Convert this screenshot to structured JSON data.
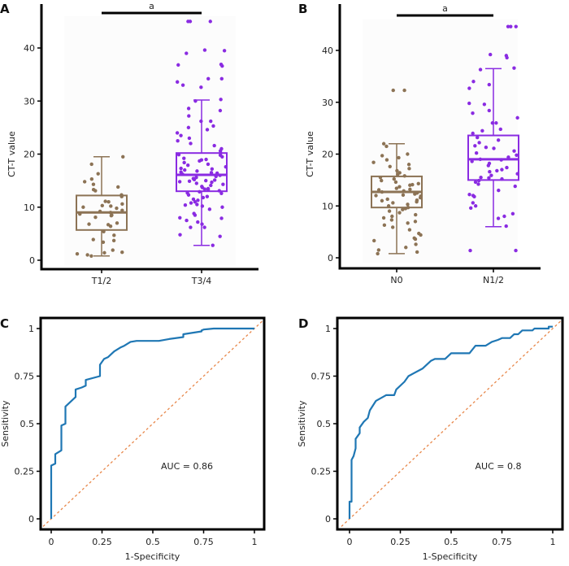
{
  "chart_data": [
    {
      "panel": "A",
      "type": "box",
      "ylabel": "CT-T value",
      "ylim": [
        0,
        45
      ],
      "yticks": [
        0,
        10,
        20,
        30,
        40
      ],
      "categories": [
        "T1/2",
        "T3/4"
      ],
      "significance": {
        "label": "a",
        "from": "T1/2",
        "to": "T3/4"
      },
      "groups": [
        {
          "name": "T1/2",
          "color": "#8c7355",
          "box": {
            "whisker_low": 0.8,
            "q1": 5.7,
            "median": 9.0,
            "q3": 12.2,
            "whisker_high": 19.5
          },
          "points": [
            1.2,
            1.5,
            0.8,
            1.0,
            1.9,
            3.4,
            3.9,
            3.7,
            4.7,
            5.4,
            6.4,
            6.7,
            7.0,
            6.8,
            8.1,
            8.5,
            8.4,
            8.7,
            9.0,
            9.2,
            9.4,
            9.8,
            10.0,
            10.3,
            10.6,
            10.2,
            11.0,
            11.1,
            12.0,
            12.3,
            13.1,
            13.3,
            13.8,
            14.3,
            14.8,
            15.3,
            16.3,
            18.1,
            19.5,
            1.4
          ]
        },
        {
          "name": "T3/4",
          "color": "#8a2be2",
          "box": {
            "whisker_low": 2.8,
            "q1": 13.0,
            "median": 16.1,
            "q3": 20.2,
            "whisker_high": 30.2
          },
          "points": [
            2.8,
            4.5,
            4.8,
            6.2,
            6.2,
            6.8,
            7.2,
            7.5,
            7.9,
            8.0,
            8.5,
            8.8,
            9.6,
            10.0,
            10.2,
            10.4,
            10.5,
            10.8,
            11.0,
            11.3,
            11.5,
            11.8,
            12.0,
            12.3,
            12.6,
            12.9,
            13.1,
            13.3,
            13.5,
            13.7,
            13.9,
            14.1,
            14.3,
            14.5,
            14.7,
            14.9,
            15.0,
            15.2,
            15.4,
            15.6,
            15.8,
            16.0,
            16.2,
            16.4,
            16.6,
            16.8,
            17.0,
            17.3,
            17.6,
            17.9,
            18.1,
            18.4,
            18.7,
            19.0,
            19.2,
            19.5,
            19.8,
            20.2,
            20.6,
            21.0,
            21.6,
            22.0,
            22.5,
            23.0,
            23.5,
            24.0,
            24.6,
            25.0,
            25.3,
            26.2,
            26.2,
            27.2,
            28.2,
            28.6,
            30.0,
            30.3,
            33.0,
            32.6,
            33.6,
            34.2,
            34.2,
            36.6,
            36.8,
            36.9,
            39.0,
            39.5,
            39.6,
            45.0,
            45.0,
            45.0,
            12.7,
            13.4,
            14.8,
            15.1,
            16.5,
            17.2,
            18.9,
            19.9
          ]
        }
      ]
    },
    {
      "panel": "B",
      "type": "box",
      "ylabel": "CT-T value",
      "ylim": [
        0,
        45
      ],
      "yticks": [
        0,
        10,
        20,
        30,
        40
      ],
      "categories": [
        "N0",
        "N1/2"
      ],
      "significance": {
        "label": "a",
        "from": "N0",
        "to": "N1/2"
      },
      "groups": [
        {
          "name": "N0",
          "color": "#8c7355",
          "box": {
            "whisker_low": 0.8,
            "q1": 9.7,
            "median": 12.7,
            "q3": 15.7,
            "whisker_high": 22.0
          },
          "points": [
            0.8,
            1.1,
            1.5,
            2.0,
            2.6,
            3.3,
            3.6,
            3.8,
            4.4,
            4.7,
            5.4,
            5.9,
            6.3,
            6.7,
            7.0,
            7.3,
            7.7,
            8.0,
            8.3,
            8.7,
            9.0,
            9.3,
            9.7,
            10.0,
            10.3,
            10.6,
            11.0,
            11.3,
            11.6,
            11.9,
            12.1,
            12.3,
            12.5,
            12.7,
            12.9,
            13.1,
            13.4,
            13.7,
            14.0,
            14.3,
            14.6,
            14.9,
            15.2,
            15.5,
            15.8,
            16.1,
            16.4,
            16.8,
            17.2,
            17.6,
            18.0,
            18.4,
            18.9,
            19.3,
            19.7,
            20.0,
            21.5,
            22.0,
            32.3,
            32.3,
            12.0,
            13.2,
            14.1,
            11.1,
            10.8,
            9.5
          ]
        },
        {
          "name": "N1/2",
          "color": "#8a2be2",
          "box": {
            "whisker_low": 6.0,
            "q1": 15.0,
            "median": 19.0,
            "q3": 23.6,
            "whisker_high": 36.5
          },
          "points": [
            1.4,
            1.4,
            6.1,
            7.6,
            8.0,
            8.5,
            9.6,
            10.0,
            10.6,
            11.8,
            12.0,
            12.2,
            13.0,
            13.8,
            14.2,
            14.6,
            14.9,
            15.2,
            15.5,
            15.9,
            16.2,
            16.6,
            17.0,
            17.4,
            17.8,
            18.2,
            18.6,
            19.0,
            19.4,
            19.8,
            20.2,
            20.6,
            21.1,
            21.6,
            22.2,
            22.7,
            23.2,
            24.0,
            24.5,
            24.8,
            26.0,
            26.0,
            27.0,
            27.9,
            28.4,
            29.6,
            29.8,
            32.7,
            33.4,
            34.0,
            36.3,
            36.6,
            38.6,
            39.0,
            39.2,
            44.6,
            44.6,
            44.6,
            18.9,
            16.8,
            21.3,
            15.4
          ]
        }
      ]
    },
    {
      "panel": "C",
      "type": "line",
      "xlabel": "1-Specificity",
      "ylabel": "Sensitivity",
      "xlim": [
        0,
        1
      ],
      "ylim": [
        0,
        1
      ],
      "xticks": [
        "0",
        "0.25",
        "0.5",
        "0.75",
        "1"
      ],
      "yticks": [
        "0",
        "0.25",
        "0.5",
        "0.75",
        "1"
      ],
      "annotation": "AUC = 0.86",
      "series": [
        {
          "name": "ROC",
          "color": "#1f77b4",
          "x": [
            0,
            0,
            0.02,
            0.02,
            0.05,
            0.05,
            0.07,
            0.07,
            0.12,
            0.12,
            0.15,
            0.17,
            0.17,
            0.24,
            0.24,
            0.26,
            0.28,
            0.31,
            0.34,
            0.36,
            0.39,
            0.42,
            0.53,
            0.58,
            0.65,
            0.65,
            0.74,
            0.74,
            0.75,
            0.8,
            0.87,
            1.0
          ],
          "y": [
            0,
            0.28,
            0.29,
            0.34,
            0.36,
            0.49,
            0.5,
            0.59,
            0.64,
            0.68,
            0.69,
            0.7,
            0.73,
            0.75,
            0.81,
            0.84,
            0.85,
            0.88,
            0.9,
            0.91,
            0.93,
            0.935,
            0.935,
            0.945,
            0.955,
            0.97,
            0.985,
            0.99,
            0.995,
            1.0,
            1.0,
            1.0
          ]
        },
        {
          "name": "reference",
          "color": "#e8874a",
          "dashed": true,
          "x": [
            -0.04,
            1.04
          ],
          "y": [
            -0.04,
            1.04
          ]
        }
      ]
    },
    {
      "panel": "D",
      "type": "line",
      "xlabel": "1-Specificity",
      "ylabel": "Sensitivity",
      "xlim": [
        0,
        1
      ],
      "ylim": [
        0,
        1
      ],
      "xticks": [
        "0",
        "0.25",
        "0.5",
        "0.75",
        "1"
      ],
      "yticks": [
        "0",
        "0.25",
        "0.5",
        "0.75",
        "1"
      ],
      "annotation": "AUC = 0.8",
      "series": [
        {
          "name": "ROC",
          "color": "#1f77b4",
          "x": [
            0,
            0,
            0.01,
            0.01,
            0.02,
            0.03,
            0.03,
            0.05,
            0.05,
            0.07,
            0.09,
            0.1,
            0.13,
            0.18,
            0.22,
            0.23,
            0.27,
            0.29,
            0.36,
            0.4,
            0.42,
            0.47,
            0.5,
            0.59,
            0.62,
            0.67,
            0.7,
            0.73,
            0.75,
            0.79,
            0.81,
            0.83,
            0.85,
            0.9,
            0.91,
            0.98,
            0.98,
            1.0
          ],
          "y": [
            0,
            0.09,
            0.09,
            0.31,
            0.33,
            0.37,
            0.42,
            0.45,
            0.48,
            0.51,
            0.53,
            0.57,
            0.62,
            0.65,
            0.65,
            0.68,
            0.72,
            0.75,
            0.79,
            0.83,
            0.84,
            0.84,
            0.87,
            0.87,
            0.91,
            0.91,
            0.93,
            0.94,
            0.95,
            0.95,
            0.97,
            0.97,
            0.99,
            0.99,
            1.0,
            1.0,
            1.01,
            1.01
          ]
        },
        {
          "name": "reference",
          "color": "#e8874a",
          "dashed": true,
          "x": [
            -0.04,
            1.04
          ],
          "y": [
            -0.04,
            1.04
          ]
        }
      ]
    }
  ]
}
